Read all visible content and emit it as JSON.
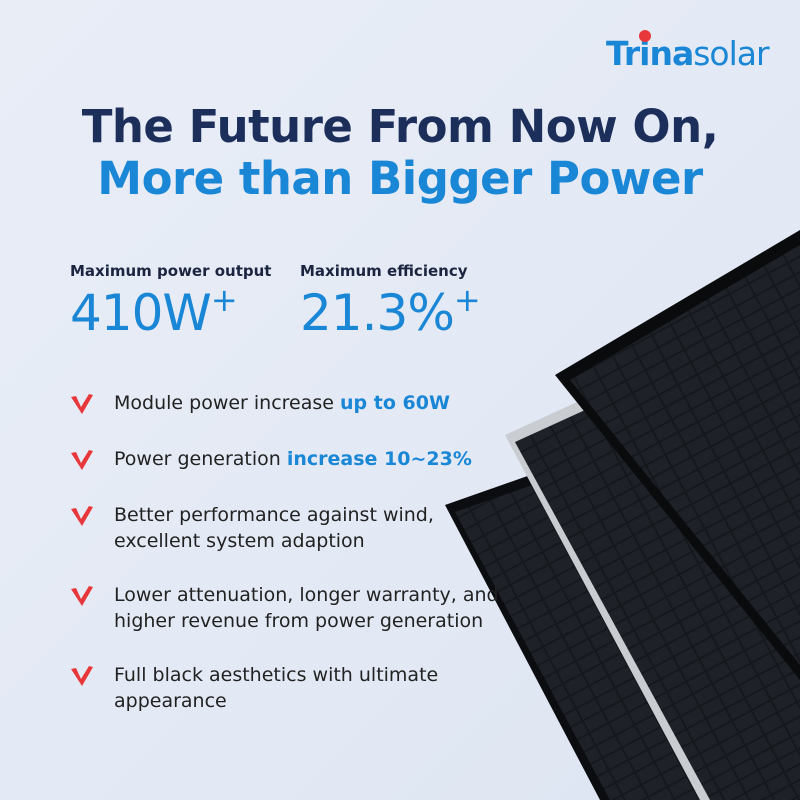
{
  "brand": {
    "logo_bold": "Trina",
    "logo_light": "solar",
    "colors": {
      "blue": "#1a86d6",
      "dark": "#1c2e5a",
      "red": "#e8373a"
    }
  },
  "headline": {
    "line1": "The Future From Now On,",
    "line2": "More than Bigger Power"
  },
  "stats": [
    {
      "label": "Maximum power output",
      "value": "410W",
      "sup": "+"
    },
    {
      "label": "Maximum efficiency",
      "value": "21.3%",
      "sup": "+"
    }
  ],
  "features": [
    {
      "text": "Module power increase ",
      "highlight": "up to 60W"
    },
    {
      "text": "Power generation ",
      "highlight": "increase 10~23%"
    },
    {
      "text": "Better performance against wind, excellent system adaption",
      "highlight": ""
    },
    {
      "text": "Lower attenuation, longer warranty, and higher revenue from power generation",
      "highlight": ""
    },
    {
      "text": "Full black aesthetics with ultimate appearance",
      "highlight": ""
    }
  ],
  "icons": {
    "bullet": "check-icon"
  }
}
